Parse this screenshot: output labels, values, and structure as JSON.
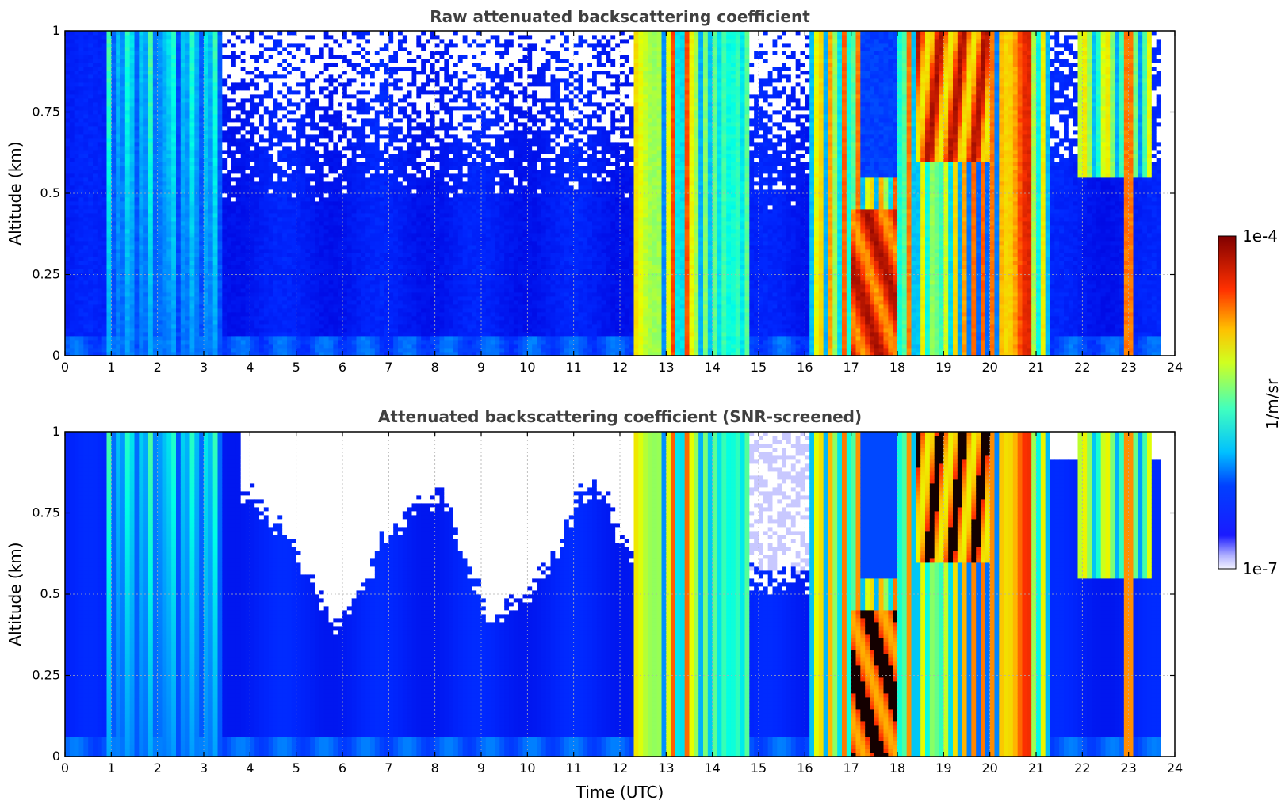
{
  "chart_data": [
    {
      "type": "heatmap",
      "title": "Raw attenuated backscattering coefficient",
      "xlabel": "",
      "ylabel": "Altitude (km)",
      "xlim": [
        0,
        24
      ],
      "ylim": [
        0,
        1
      ],
      "x_ticks": [
        "0",
        "1",
        "2",
        "3",
        "4",
        "5",
        "6",
        "7",
        "8",
        "9",
        "10",
        "11",
        "12",
        "13",
        "14",
        "15",
        "16",
        "17",
        "18",
        "19",
        "20",
        "21",
        "22",
        "23",
        "24"
      ],
      "y_ticks": [
        "0",
        "0.25",
        "0.5",
        "0.75",
        "1"
      ],
      "grid": true,
      "screened": false
    },
    {
      "type": "heatmap",
      "title": "Attenuated backscattering coefficient (SNR-screened)",
      "xlabel": "Time (UTC)",
      "ylabel": "Altitude (km)",
      "xlim": [
        0,
        24
      ],
      "ylim": [
        0,
        1
      ],
      "x_ticks": [
        "0",
        "1",
        "2",
        "3",
        "4",
        "5",
        "6",
        "7",
        "8",
        "9",
        "10",
        "11",
        "12",
        "13",
        "14",
        "15",
        "16",
        "17",
        "18",
        "19",
        "20",
        "21",
        "22",
        "23",
        "24"
      ],
      "y_ticks": [
        "0",
        "0.25",
        "0.5",
        "0.75",
        "1"
      ],
      "grid": true,
      "screened": true
    }
  ],
  "colorbar": {
    "label": "1/m/sr",
    "max_label": "1e-4",
    "min_label": "1e-7",
    "colormap": [
      "#00007f",
      "#0000ff",
      "#007fff",
      "#00ffff",
      "#7fff7f",
      "#ffff00",
      "#ff7f00",
      "#ff0000",
      "#7f0000"
    ],
    "low_color": "#e8e8ff"
  }
}
